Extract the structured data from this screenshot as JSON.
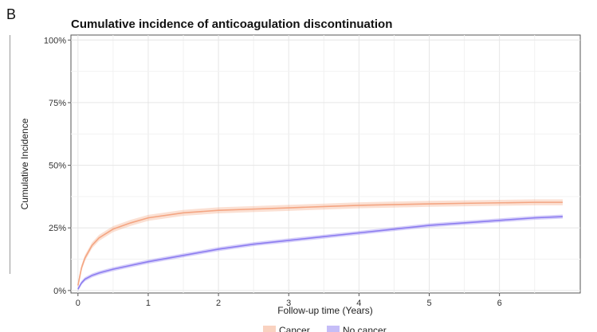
{
  "panel_label": "B",
  "chart_data": {
    "type": "line",
    "title": "Cumulative incidence of anticoagulation discontinuation",
    "xlabel": "Follow-up time (Years)",
    "ylabel": "Cumulative Incidence",
    "xlim": [
      -0.1,
      7.15
    ],
    "ylim": [
      -0.01,
      1.02
    ],
    "x_ticks": [
      0,
      1,
      2,
      3,
      4,
      5,
      6
    ],
    "y_ticks": [
      0,
      0.25,
      0.5,
      0.75,
      1.0
    ],
    "y_tick_labels": [
      "0%",
      "25%",
      "50%",
      "75%",
      "100%"
    ],
    "grid": true,
    "legend": "bottom",
    "series": [
      {
        "name": "Cancer",
        "color": "#f4a582",
        "band": 0.012,
        "x": [
          0,
          0.05,
          0.1,
          0.2,
          0.3,
          0.5,
          0.75,
          1.0,
          1.5,
          2.0,
          2.5,
          3.0,
          3.5,
          4.0,
          4.5,
          5.0,
          5.5,
          6.0,
          6.5,
          6.9
        ],
        "y": [
          0.02,
          0.09,
          0.13,
          0.18,
          0.21,
          0.245,
          0.27,
          0.29,
          0.31,
          0.32,
          0.325,
          0.33,
          0.335,
          0.34,
          0.343,
          0.346,
          0.348,
          0.35,
          0.352,
          0.352
        ]
      },
      {
        "name": "No cancer",
        "color": "#8c7cf0",
        "band": 0.008,
        "x": [
          0,
          0.05,
          0.1,
          0.2,
          0.3,
          0.5,
          0.75,
          1.0,
          1.5,
          2.0,
          2.5,
          3.0,
          3.5,
          4.0,
          4.5,
          5.0,
          5.5,
          6.0,
          6.5,
          6.9
        ],
        "y": [
          0.005,
          0.03,
          0.045,
          0.06,
          0.07,
          0.085,
          0.1,
          0.115,
          0.14,
          0.165,
          0.185,
          0.2,
          0.215,
          0.23,
          0.245,
          0.26,
          0.27,
          0.28,
          0.29,
          0.295
        ]
      }
    ]
  }
}
